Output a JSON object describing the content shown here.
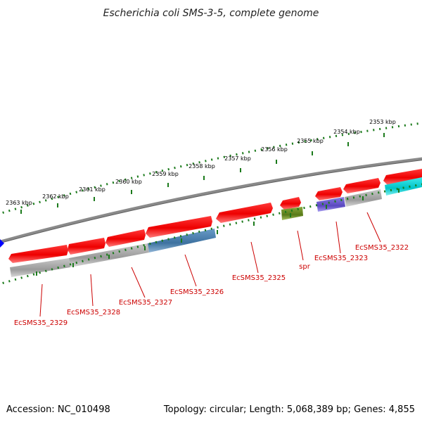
{
  "header": {
    "title": "Escherichia coli SMS-3-5, complete genome"
  },
  "footer": {
    "accession": "Accession: NC_010498",
    "summary": "Topology: circular; Length: 5,068,389 bp; Genes: 4,855"
  },
  "scale_labels": [
    "2363 kbp",
    "2362 kbp",
    "2361 kbp",
    "2360 kbp",
    "2359 kbp",
    "2358 kbp",
    "2357 kbp",
    "2356 kbp",
    "2355 kbp",
    "2354 kbp",
    "2353 kbp"
  ],
  "gene_labels": [
    "EcSMS35_2329",
    "EcSMS35_2328",
    "EcSMS35_2327",
    "EcSMS35_2326",
    "EcSMS35_2325",
    "spr",
    "EcSMS35_2323",
    "EcSMS35_2322"
  ],
  "colors": {
    "gene_forward": "#ff0000",
    "gene_grey": "#a9a9a9",
    "gene_blue": "#4682b4",
    "gene_olive": "#6b8e23",
    "gene_purple": "#6a5acd",
    "gene_cyan": "#00ced1",
    "backbone": "#808080",
    "ticks": "#006400",
    "label": "#cc0000"
  }
}
